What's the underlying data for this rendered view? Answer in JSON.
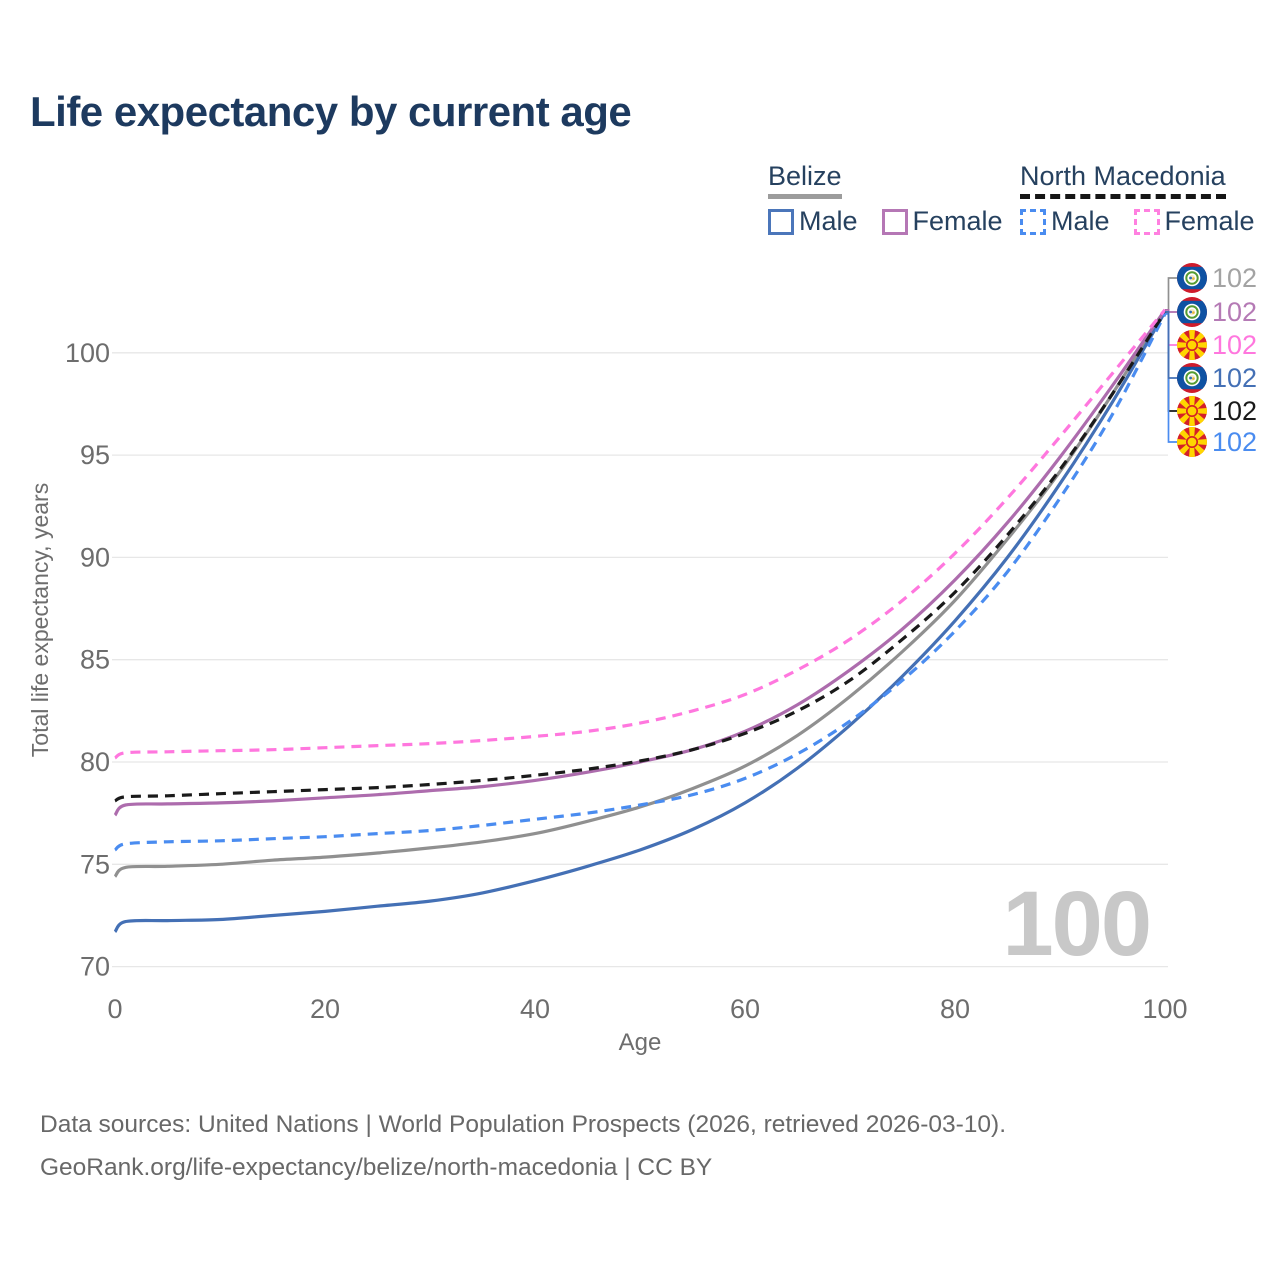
{
  "title": "Life expectancy by current age",
  "legend": {
    "groups": [
      {
        "country": "Belize",
        "underline_color": "#9c9c9c",
        "underline_style": "solid",
        "items": [
          {
            "label": "Male",
            "color": "#4b76ba",
            "line_style": "solid"
          },
          {
            "label": "Female",
            "color": "#b577b5",
            "line_style": "solid"
          }
        ]
      },
      {
        "country": "North Macedonia",
        "underline_color": "#161616",
        "underline_style": "dashed",
        "items": [
          {
            "label": "Male",
            "color": "#4a8cf0",
            "line_style": "dashed"
          },
          {
            "label": "Female",
            "color": "#ff80e0",
            "line_style": "dashed"
          }
        ]
      }
    ]
  },
  "chart_data": {
    "type": "line",
    "title": "Life expectancy by current age",
    "xlabel": "Age",
    "ylabel": "Total life expectancy, years",
    "x_ticks": [
      0,
      20,
      40,
      60,
      80,
      100
    ],
    "y_ticks": [
      70,
      75,
      80,
      85,
      90,
      95,
      100
    ],
    "xlim": [
      0,
      100
    ],
    "ylim": [
      70,
      102.3
    ],
    "grid": "horizontal",
    "legend_position": "top-right",
    "watermark_current_age": "100",
    "ages": [
      0,
      1,
      5,
      10,
      15,
      20,
      25,
      30,
      35,
      40,
      45,
      50,
      55,
      60,
      65,
      70,
      75,
      80,
      85,
      90,
      95,
      100
    ],
    "series": [
      {
        "id": "belize-total",
        "country": "Belize",
        "sex": "Total",
        "color": "#909090",
        "line_style": "solid",
        "flag": "belize",
        "end_label": "102",
        "end_label_color": "#a3a3a3",
        "end_row": 0,
        "values": [
          74.4,
          74.85,
          74.9,
          75.0,
          75.2,
          75.35,
          75.55,
          75.8,
          76.1,
          76.5,
          77.1,
          77.8,
          78.7,
          79.8,
          81.3,
          83.2,
          85.4,
          87.9,
          90.9,
          94.2,
          98.0,
          102.1
        ]
      },
      {
        "id": "belize-male",
        "country": "Belize",
        "sex": "Male",
        "color": "#4470b5",
        "line_style": "solid",
        "flag": "belize",
        "end_label": "102",
        "end_label_color": "#4470b5",
        "end_row": 3,
        "values": [
          71.7,
          72.2,
          72.25,
          72.3,
          72.5,
          72.7,
          72.95,
          73.2,
          73.6,
          74.2,
          74.9,
          75.7,
          76.7,
          78.0,
          79.7,
          81.8,
          84.2,
          86.9,
          90.0,
          93.6,
          97.6,
          102.0
        ]
      },
      {
        "id": "belize-female",
        "country": "Belize",
        "sex": "Female",
        "color": "#ad6cad",
        "line_style": "solid",
        "flag": "belize",
        "end_label": "102",
        "end_label_color": "#b57ab5",
        "end_row": 1,
        "values": [
          77.4,
          77.9,
          77.95,
          78.0,
          78.1,
          78.25,
          78.4,
          78.6,
          78.8,
          79.1,
          79.5,
          80.0,
          80.6,
          81.5,
          82.8,
          84.5,
          86.5,
          88.9,
          91.7,
          94.9,
          98.4,
          102.1
        ]
      },
      {
        "id": "north-macedonia-male",
        "country": "North Macedonia",
        "sex": "Male",
        "color": "#4a8cf0",
        "line_style": "dashed",
        "flag": "north-macedonia",
        "end_label": "102",
        "end_label_color": "#4a8cf0",
        "end_row": 5,
        "values": [
          75.7,
          76.0,
          76.1,
          76.15,
          76.25,
          76.35,
          76.5,
          76.65,
          76.9,
          77.2,
          77.5,
          77.9,
          78.4,
          79.2,
          80.4,
          82.0,
          84.0,
          86.4,
          89.3,
          92.9,
          97.0,
          101.9
        ]
      },
      {
        "id": "north-macedonia-total",
        "country": "North Macedonia",
        "sex": "Total",
        "color": "#1a1a1a",
        "line_style": "dashed",
        "flag": "north-macedonia",
        "end_label": "102",
        "end_label_color": "#1a1a1a",
        "end_row": 4,
        "values": [
          78.1,
          78.3,
          78.35,
          78.45,
          78.55,
          78.65,
          78.75,
          78.9,
          79.1,
          79.35,
          79.65,
          80.05,
          80.6,
          81.4,
          82.5,
          84.0,
          86.0,
          88.3,
          91.1,
          94.3,
          98.0,
          102.0
        ]
      },
      {
        "id": "north-macedonia-female",
        "country": "North Macedonia",
        "sex": "Female",
        "color": "#ff77de",
        "line_style": "dashed",
        "flag": "north-macedonia",
        "end_label": "102",
        "end_label_color": "#ff77de",
        "end_row": 2,
        "values": [
          80.2,
          80.45,
          80.5,
          80.55,
          80.6,
          80.7,
          80.8,
          80.9,
          81.05,
          81.25,
          81.5,
          81.9,
          82.5,
          83.3,
          84.5,
          86.0,
          87.9,
          90.2,
          92.9,
          95.9,
          99.0,
          102.1
        ]
      }
    ]
  },
  "footer": {
    "line1": "Data sources: United Nations | World Population Prospects (2026, retrieved 2026-03-10).",
    "line2": "GeoRank.org/life-expectancy/belize/north-macedonia | CC BY"
  }
}
